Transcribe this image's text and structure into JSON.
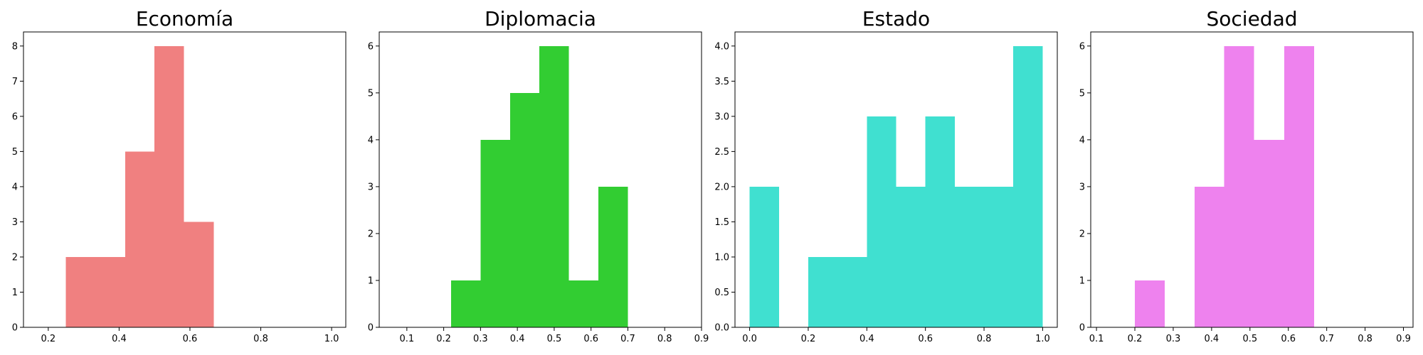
{
  "chart_data": [
    {
      "type": "bar",
      "title": "Economía",
      "color": "#F08080",
      "xlim": [
        0.13,
        1.04
      ],
      "ylim": [
        0,
        8.4
      ],
      "xticks": [
        "0.2",
        "0.4",
        "0.6",
        "0.8",
        "1.0"
      ],
      "yticks": [
        "0",
        "1",
        "2",
        "3",
        "4",
        "5",
        "6",
        "7",
        "8"
      ],
      "bins": [
        {
          "x0": 0.25,
          "x1": 0.333,
          "count": 2
        },
        {
          "x0": 0.333,
          "x1": 0.417,
          "count": 2
        },
        {
          "x0": 0.417,
          "x1": 0.5,
          "count": 5
        },
        {
          "x0": 0.5,
          "x1": 0.583,
          "count": 8
        },
        {
          "x0": 0.583,
          "x1": 0.667,
          "count": 3
        }
      ]
    },
    {
      "type": "bar",
      "title": "Diplomacia",
      "color": "#32CD32",
      "xlim": [
        0.025,
        0.9
      ],
      "ylim": [
        0,
        6.3
      ],
      "xticks": [
        "0.1",
        "0.2",
        "0.3",
        "0.4",
        "0.5",
        "0.6",
        "0.7",
        "0.8",
        "0.9"
      ],
      "yticks": [
        "0",
        "1",
        "2",
        "3",
        "4",
        "5",
        "6"
      ],
      "bins": [
        {
          "x0": 0.22,
          "x1": 0.3,
          "count": 1
        },
        {
          "x0": 0.3,
          "x1": 0.38,
          "count": 4
        },
        {
          "x0": 0.38,
          "x1": 0.46,
          "count": 5
        },
        {
          "x0": 0.46,
          "x1": 0.54,
          "count": 6
        },
        {
          "x0": 0.54,
          "x1": 0.62,
          "count": 1
        },
        {
          "x0": 0.62,
          "x1": 0.7,
          "count": 3
        }
      ]
    },
    {
      "type": "bar",
      "title": "Estado",
      "color": "#40E0D0",
      "xlim": [
        -0.05,
        1.05
      ],
      "ylim": [
        0,
        4.2
      ],
      "xticks": [
        "0.0",
        "0.2",
        "0.4",
        "0.6",
        "0.8",
        "1.0"
      ],
      "yticks": [
        "0.0",
        "0.5",
        "1.0",
        "1.5",
        "2.0",
        "2.5",
        "3.0",
        "3.5",
        "4.0"
      ],
      "bins": [
        {
          "x0": 0.0,
          "x1": 0.1,
          "count": 2
        },
        {
          "x0": 0.1,
          "x1": 0.2,
          "count": 0
        },
        {
          "x0": 0.2,
          "x1": 0.3,
          "count": 1
        },
        {
          "x0": 0.3,
          "x1": 0.4,
          "count": 1
        },
        {
          "x0": 0.4,
          "x1": 0.5,
          "count": 3
        },
        {
          "x0": 0.5,
          "x1": 0.6,
          "count": 2
        },
        {
          "x0": 0.6,
          "x1": 0.7,
          "count": 3
        },
        {
          "x0": 0.7,
          "x1": 0.8,
          "count": 2
        },
        {
          "x0": 0.8,
          "x1": 0.9,
          "count": 2
        },
        {
          "x0": 0.9,
          "x1": 1.0,
          "count": 4
        }
      ]
    },
    {
      "type": "bar",
      "title": "Sociedad",
      "color": "#EE82EE",
      "xlim": [
        0.085,
        0.925
      ],
      "ylim": [
        0,
        6.3
      ],
      "xticks": [
        "0.1",
        "0.2",
        "0.3",
        "0.4",
        "0.5",
        "0.6",
        "0.7",
        "0.8",
        "0.9"
      ],
      "yticks": [
        "0",
        "1",
        "2",
        "3",
        "4",
        "5",
        "6"
      ],
      "bins": [
        {
          "x0": 0.2,
          "x1": 0.278,
          "count": 1
        },
        {
          "x0": 0.278,
          "x1": 0.356,
          "count": 0
        },
        {
          "x0": 0.356,
          "x1": 0.433,
          "count": 3
        },
        {
          "x0": 0.433,
          "x1": 0.511,
          "count": 6
        },
        {
          "x0": 0.511,
          "x1": 0.589,
          "count": 4
        },
        {
          "x0": 0.589,
          "x1": 0.667,
          "count": 6
        }
      ]
    }
  ]
}
